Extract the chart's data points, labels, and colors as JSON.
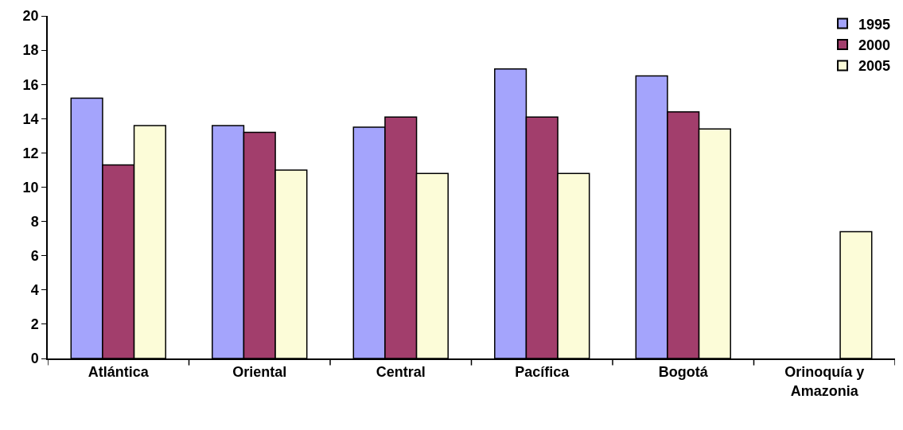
{
  "chart_data": {
    "type": "bar",
    "categories": [
      "Atlántica",
      "Oriental",
      "Central",
      "Pacífica",
      "Bogotá",
      "Orinoquía y Amazonia"
    ],
    "series": [
      {
        "name": "1995",
        "color": "#a4a4fc",
        "values": [
          15.2,
          13.6,
          13.5,
          16.9,
          16.5,
          null
        ]
      },
      {
        "name": "2000",
        "color": "#a23e6c",
        "values": [
          11.3,
          13.2,
          14.1,
          14.1,
          14.4,
          null
        ]
      },
      {
        "name": "2005",
        "color": "#fcfcd8",
        "values": [
          13.6,
          11.0,
          10.8,
          10.8,
          13.4,
          7.4
        ]
      }
    ],
    "ylim": [
      0,
      20
    ],
    "yticks": [
      0,
      2,
      4,
      6,
      8,
      10,
      12,
      14,
      16,
      18,
      20
    ],
    "legend": "top right"
  }
}
